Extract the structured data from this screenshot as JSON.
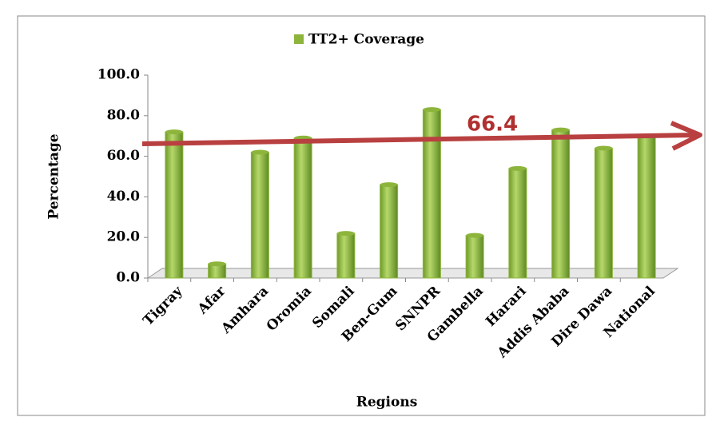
{
  "chart_data": {
    "type": "bar",
    "legend": "TT2+ Coverage",
    "xlabel": "Regions",
    "ylabel": "Percentage",
    "annotation": "66.4",
    "categories": [
      "Tigray",
      "Afar",
      "Amhara",
      "Oromia",
      "Somali",
      "Ben-Gum",
      "SNNPR",
      "Gambella",
      "Harari",
      "Addis Ababa",
      "Dire Dawa",
      "National"
    ],
    "values": [
      72,
      7,
      62,
      69,
      22,
      46,
      83,
      21,
      54,
      73,
      64,
      70
    ],
    "color": "#8db53c",
    "ylim": [
      0,
      100
    ],
    "yticks": [
      {
        "value": 0,
        "label": "0.0"
      },
      {
        "value": 20,
        "label": "20.0"
      },
      {
        "value": 40,
        "label": "40.0"
      },
      {
        "value": 60,
        "label": "60.0"
      },
      {
        "value": 80,
        "label": "80.0"
      },
      {
        "value": 100,
        "label": "100.0"
      }
    ]
  }
}
